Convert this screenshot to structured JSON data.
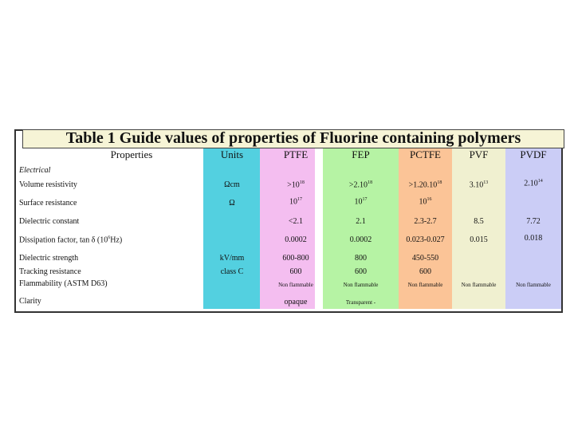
{
  "title": "Table 1 Guide values of properties of Fluorine containing polymers",
  "headers": {
    "properties": "Properties",
    "units": "Units",
    "ptfe": "PTFE",
    "fep": "FEP",
    "pctfe": "PCTFE",
    "pvf": "PVF",
    "pvdf": "PVDF"
  },
  "section": "Electrical",
  "colors": {
    "units": "#53d0e0",
    "ptfe": "#f4bef0",
    "fep": "#b6f3a4",
    "pctfe": "#fbc497",
    "pvf": "#f0f0d0",
    "pvdf": "#cbcdf6"
  },
  "rows": [
    {
      "label": "Volume resistivity",
      "units": "Ωcm",
      "ptfe": ">10",
      "ptfe_exp": "18",
      "fep": ">2.10",
      "fep_exp": "18",
      "pctfe": ">1.20.10",
      "pctfe_exp": "18",
      "pvf": "3.10",
      "pvf_exp": "13",
      "pvdf": "2.10",
      "pvdf_exp": "14"
    },
    {
      "label": "Surface resistance",
      "units": "Ω",
      "ptfe": "10",
      "ptfe_exp": "17",
      "fep": "10",
      "fep_exp": "17",
      "pctfe": "10",
      "pctfe_exp": "16",
      "pvf": "",
      "pvdf": ""
    },
    {
      "label": "Dielectric constant",
      "units": "",
      "ptfe": "<2.1",
      "fep": "2.1",
      "pctfe": "2.3-2.7",
      "pvf": "8.5",
      "pvdf": "7.72"
    },
    {
      "label": "Dissipation factor, tan δ (10",
      "label_exp": "6",
      "label_tail": "Hz)",
      "units": "",
      "ptfe": "0.0002",
      "fep": "0.0002",
      "pctfe": "0.023-0.027",
      "pvf": "0.015",
      "pvdf": "0.018"
    },
    {
      "label": "Dielectric strength",
      "units": "kV/mm",
      "ptfe": "600-800",
      "fep": "800",
      "pctfe": "450-550",
      "pvf": "",
      "pvdf": ""
    },
    {
      "label": "Tracking resistance",
      "units": "class C",
      "ptfe": "600",
      "fep": "600",
      "pctfe": "600",
      "pvf": "",
      "pvdf": ""
    },
    {
      "label": "Flammability (ASTM D63)",
      "units": "",
      "ptfe": "Non flammable",
      "fep": "Non flammable",
      "pctfe": "Non flammable",
      "pvf": "Non flammable",
      "pvdf": "Non flammable"
    },
    {
      "label": "Clarity",
      "units": "",
      "ptfe": "opaque",
      "fep": "Transparent -",
      "pctfe": "",
      "pvf": "",
      "pvdf": ""
    }
  ]
}
